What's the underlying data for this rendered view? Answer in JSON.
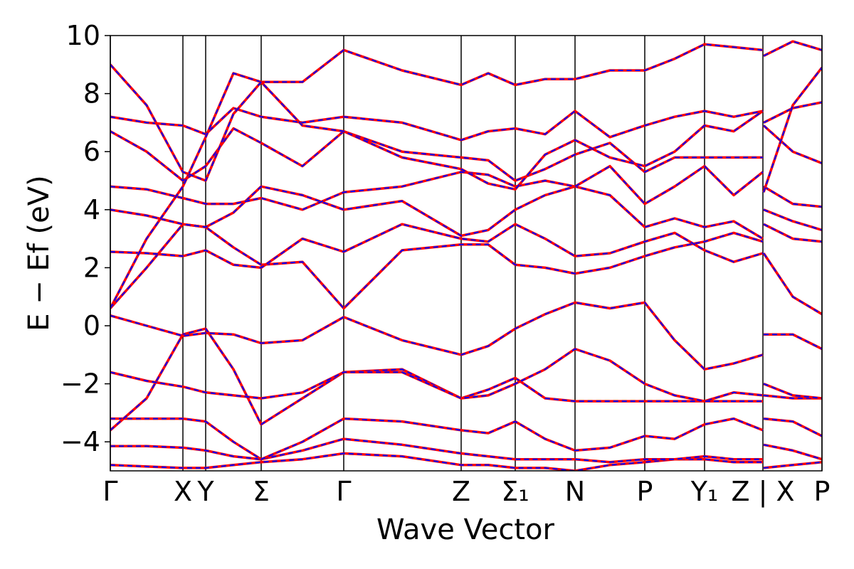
{
  "chart_data": {
    "type": "band_structure",
    "xlabel": "Wave Vector",
    "ylabel": "E − Ef (eV)",
    "xlim": [
      0,
      1000
    ],
    "ylim": [
      -5,
      10
    ],
    "yticks": [
      {
        "value": -4,
        "label": "−4"
      },
      {
        "value": -2,
        "label": "−2"
      },
      0,
      2,
      4,
      6,
      8,
      10
    ],
    "xticks": [
      {
        "value": 0,
        "label": "Γ"
      },
      {
        "value": 102,
        "label": "X"
      },
      {
        "value": 134,
        "label": "Y"
      },
      {
        "value": 212,
        "label": "Σ"
      },
      {
        "value": 328,
        "label": "Γ"
      },
      {
        "value": 493,
        "label": "Z"
      },
      {
        "value": 569,
        "label": "Σ₁"
      },
      {
        "value": 653,
        "label": "N"
      },
      {
        "value": 751,
        "label": "P"
      },
      {
        "value": 835,
        "label": "Y₁"
      },
      {
        "value": 917,
        "label": "Z | X"
      },
      {
        "value": 1000,
        "label": "P"
      }
    ],
    "line_styles": [
      {
        "color": "#ff0000",
        "dash": "solid"
      },
      {
        "color": "#0000ff",
        "dash": "dashed"
      }
    ],
    "x": [
      0,
      51,
      102,
      134,
      173,
      212,
      270,
      328,
      410,
      493,
      531,
      569,
      611,
      653,
      702,
      751,
      793,
      835,
      876,
      917,
      917.5,
      918,
      959,
      1000
    ],
    "bands": [
      {
        "values": [
          -4.8,
          -4.85,
          -4.9,
          -4.9,
          -4.8,
          -4.7,
          -4.6,
          -4.4,
          -4.5,
          -4.8,
          -4.8,
          -4.9,
          -4.9,
          -5.0,
          -4.8,
          -4.7,
          -4.6,
          -4.6,
          -4.7,
          -4.7,
          null,
          -4.9,
          -4.8,
          -4.7
        ]
      },
      {
        "values": [
          -4.15,
          -4.15,
          -4.2,
          -4.3,
          -4.5,
          -4.6,
          -4.3,
          -3.9,
          -4.1,
          -4.4,
          -4.5,
          -4.6,
          -4.6,
          -4.6,
          -4.7,
          -4.6,
          -4.6,
          -4.5,
          -4.6,
          -4.6,
          null,
          -4.1,
          -4.3,
          -4.6
        ]
      },
      {
        "values": [
          -3.2,
          -3.2,
          -3.2,
          -3.3,
          -4.0,
          -4.6,
          -4.0,
          -3.2,
          -3.3,
          -3.6,
          -3.7,
          -3.3,
          -3.9,
          -4.3,
          -4.2,
          -3.8,
          -3.9,
          -3.4,
          -3.2,
          -3.6,
          null,
          -3.2,
          -3.3,
          -3.8
        ]
      },
      {
        "values": [
          -3.6,
          -2.5,
          -0.3,
          -0.1,
          -1.5,
          -3.4,
          -2.5,
          -1.6,
          -1.5,
          -2.5,
          -2.2,
          -1.8,
          -2.5,
          -2.6,
          -2.6,
          -2.6,
          -2.6,
          -2.6,
          -2.3,
          -2.4,
          null,
          -2.4,
          -2.5,
          -2.5
        ]
      },
      {
        "values": [
          -1.6,
          -1.9,
          -2.1,
          -2.3,
          -2.4,
          -2.5,
          -2.3,
          -1.6,
          -1.6,
          -2.5,
          -2.4,
          -2.0,
          -1.5,
          -0.8,
          -1.2,
          -2.0,
          -2.4,
          -2.6,
          -2.6,
          -2.6,
          null,
          -2.0,
          -2.4,
          -2.5
        ]
      },
      {
        "values": [
          0.35,
          0,
          -0.35,
          -0.25,
          -0.3,
          -0.6,
          -0.5,
          0.3,
          -0.5,
          -1.0,
          -0.7,
          -0.1,
          0.4,
          0.8,
          0.6,
          0.8,
          -0.5,
          -1.5,
          -1.3,
          -1.0,
          null,
          -0.3,
          -0.3,
          -0.8
        ]
      },
      {
        "values": [
          0.6,
          2.0,
          3.5,
          3.4,
          2.7,
          2.1,
          2.2,
          0.6,
          2.6,
          2.8,
          2.8,
          2.1,
          2.0,
          1.8,
          2.0,
          2.4,
          2.7,
          2.9,
          3.2,
          2.9,
          null,
          2.5,
          1.0,
          0.4
        ]
      },
      {
        "values": [
          2.55,
          2.5,
          2.4,
          2.6,
          2.1,
          2.0,
          3.0,
          2.55,
          3.5,
          3.0,
          2.9,
          3.5,
          3.0,
          2.4,
          2.5,
          2.9,
          3.2,
          2.6,
          2.2,
          2.5,
          null,
          3.5,
          3.0,
          2.9
        ]
      },
      {
        "values": [
          4.0,
          3.8,
          3.5,
          3.4,
          3.9,
          4.8,
          4.5,
          4.0,
          4.3,
          3.1,
          3.3,
          4.0,
          4.5,
          4.8,
          4.5,
          3.4,
          3.7,
          3.4,
          3.6,
          3.0,
          null,
          4.0,
          3.6,
          3.3
        ]
      },
      {
        "values": [
          4.8,
          4.7,
          4.4,
          4.2,
          4.2,
          4.4,
          4.0,
          4.6,
          4.8,
          5.3,
          5.2,
          4.8,
          5.0,
          4.8,
          5.5,
          4.2,
          4.8,
          5.5,
          4.5,
          5.3,
          null,
          4.8,
          4.2,
          4.1
        ]
      },
      {
        "values": [
          6.7,
          6.0,
          5.0,
          5.5,
          6.8,
          6.3,
          5.5,
          6.7,
          6.0,
          5.8,
          5.7,
          5.0,
          5.4,
          5.9,
          6.3,
          5.3,
          5.8,
          5.8,
          5.8,
          5.8,
          null,
          6.9,
          6.0,
          5.6
        ]
      },
      {
        "values": [
          7.2,
          7.0,
          6.9,
          6.6,
          7.5,
          7.2,
          7.0,
          7.2,
          7.0,
          6.4,
          6.7,
          6.8,
          6.6,
          7.4,
          6.5,
          6.9,
          7.2,
          7.4,
          7.2,
          7.4,
          null,
          7.0,
          7.5,
          7.7
        ]
      },
      {
        "values": [
          0.6,
          3.0,
          4.8,
          6.5,
          8.7,
          8.4,
          6.9,
          6.7,
          5.8,
          5.4,
          4.9,
          4.7,
          5.9,
          6.4,
          5.8,
          5.5,
          6.0,
          6.9,
          6.7,
          7.4,
          null,
          4.6,
          7.6,
          8.9
        ]
      },
      {
        "values": [
          9.0,
          7.6,
          5.3,
          5.0,
          7.3,
          8.4,
          8.4,
          9.5,
          8.8,
          8.3,
          8.7,
          8.3,
          8.5,
          8.5,
          8.8,
          8.8,
          9.2,
          9.7,
          9.6,
          9.5,
          null,
          9.3,
          9.8,
          9.5
        ]
      }
    ]
  }
}
